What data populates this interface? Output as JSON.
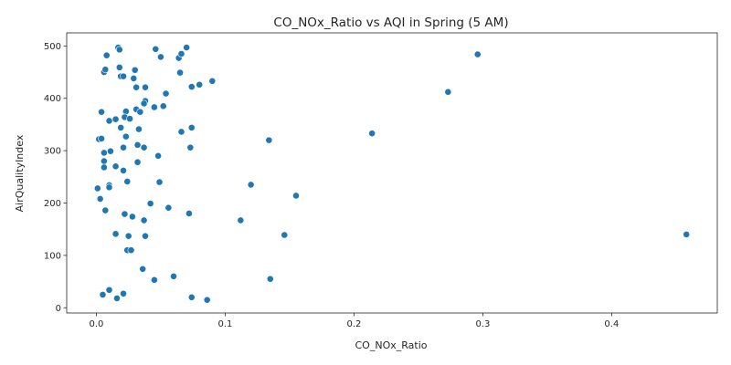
{
  "chart_data": {
    "type": "scatter",
    "title": "CO_NOx_Ratio vs AQI in Spring (5 AM)",
    "xlabel": "CO_NOx_Ratio",
    "ylabel": "AirQualityIndex",
    "xlim": [
      -0.023,
      0.482
    ],
    "ylim": [
      -10,
      525
    ],
    "xticks": [
      0.0,
      0.1,
      0.2,
      0.3,
      0.4
    ],
    "xtick_labels": [
      "0.0",
      "0.1",
      "0.2",
      "0.3",
      "0.4"
    ],
    "yticks": [
      0,
      100,
      200,
      300,
      400,
      500
    ],
    "ytick_labels": [
      "0",
      "100",
      "200",
      "300",
      "400",
      "500"
    ],
    "grid": false,
    "point_color": "#1f77b4",
    "points": [
      [
        0.017,
        497
      ],
      [
        0.018,
        493
      ],
      [
        0.046,
        494
      ],
      [
        0.07,
        497
      ],
      [
        0.296,
        484
      ],
      [
        0.008,
        482
      ],
      [
        0.05,
        479
      ],
      [
        0.064,
        477
      ],
      [
        0.066,
        485
      ],
      [
        0.006,
        450
      ],
      [
        0.007,
        455
      ],
      [
        0.018,
        459
      ],
      [
        0.03,
        454
      ],
      [
        0.065,
        449
      ],
      [
        0.019,
        442
      ],
      [
        0.021,
        442
      ],
      [
        0.029,
        438
      ],
      [
        0.031,
        421
      ],
      [
        0.038,
        421
      ],
      [
        0.074,
        422
      ],
      [
        0.08,
        426
      ],
      [
        0.09,
        433
      ],
      [
        0.273,
        412
      ],
      [
        0.054,
        409
      ],
      [
        0.038,
        395
      ],
      [
        0.037,
        390
      ],
      [
        0.031,
        379
      ],
      [
        0.034,
        374
      ],
      [
        0.045,
        383
      ],
      [
        0.052,
        385
      ],
      [
        0.004,
        374
      ],
      [
        0.023,
        375
      ],
      [
        0.01,
        357
      ],
      [
        0.015,
        360
      ],
      [
        0.022,
        364
      ],
      [
        0.026,
        361
      ],
      [
        0.019,
        344
      ],
      [
        0.033,
        341
      ],
      [
        0.074,
        344
      ],
      [
        0.066,
        336
      ],
      [
        0.214,
        333
      ],
      [
        0.023,
        327
      ],
      [
        0.002,
        322
      ],
      [
        0.004,
        323
      ],
      [
        0.134,
        320
      ],
      [
        0.032,
        311
      ],
      [
        0.037,
        306
      ],
      [
        0.021,
        306
      ],
      [
        0.073,
        306
      ],
      [
        0.011,
        299
      ],
      [
        0.006,
        296
      ],
      [
        0.048,
        290
      ],
      [
        0.006,
        280
      ],
      [
        0.032,
        278
      ],
      [
        0.006,
        268
      ],
      [
        0.015,
        270
      ],
      [
        0.021,
        262
      ],
      [
        0.024,
        241
      ],
      [
        0.049,
        240
      ],
      [
        0.01,
        234
      ],
      [
        0.01,
        230
      ],
      [
        0.001,
        228
      ],
      [
        0.12,
        235
      ],
      [
        0.155,
        214
      ],
      [
        0.003,
        208
      ],
      [
        0.042,
        199
      ],
      [
        0.056,
        191
      ],
      [
        0.007,
        186
      ],
      [
        0.022,
        179
      ],
      [
        0.028,
        174
      ],
      [
        0.072,
        180
      ],
      [
        0.037,
        167
      ],
      [
        0.112,
        167
      ],
      [
        0.015,
        141
      ],
      [
        0.025,
        137
      ],
      [
        0.038,
        137
      ],
      [
        0.146,
        139
      ],
      [
        0.458,
        140
      ],
      [
        0.024,
        110
      ],
      [
        0.027,
        110
      ],
      [
        0.036,
        74
      ],
      [
        0.06,
        60
      ],
      [
        0.045,
        53
      ],
      [
        0.135,
        55
      ],
      [
        0.01,
        34
      ],
      [
        0.005,
        25
      ],
      [
        0.021,
        27
      ],
      [
        0.016,
        18
      ],
      [
        0.074,
        20
      ],
      [
        0.086,
        15
      ]
    ]
  }
}
